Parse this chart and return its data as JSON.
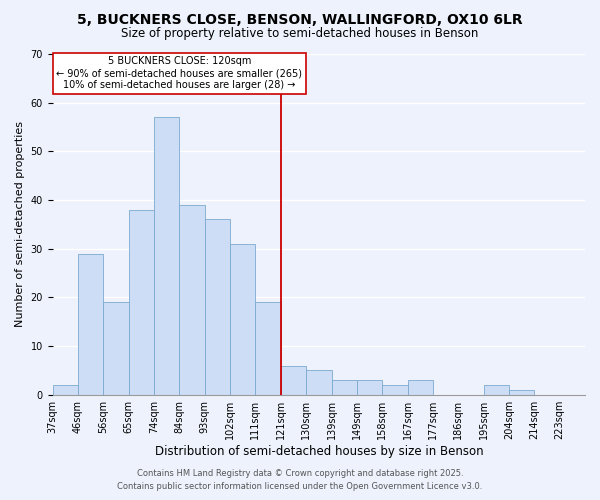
{
  "title": "5, BUCKNERS CLOSE, BENSON, WALLINGFORD, OX10 6LR",
  "subtitle": "Size of property relative to semi-detached houses in Benson",
  "xlabel": "Distribution of semi-detached houses by size in Benson",
  "ylabel": "Number of semi-detached properties",
  "categories": [
    "37sqm",
    "46sqm",
    "56sqm",
    "65sqm",
    "74sqm",
    "84sqm",
    "93sqm",
    "102sqm",
    "111sqm",
    "121sqm",
    "130sqm",
    "139sqm",
    "149sqm",
    "158sqm",
    "167sqm",
    "177sqm",
    "186sqm",
    "195sqm",
    "204sqm",
    "214sqm",
    "223sqm"
  ],
  "values": [
    2,
    29,
    19,
    38,
    57,
    39,
    36,
    31,
    19,
    6,
    5,
    3,
    3,
    2,
    3,
    0,
    0,
    2,
    1,
    0,
    0
  ],
  "bar_color": "#ccddf5",
  "bar_edge_color": "#7aaad0",
  "subject_line_color": "#cc0000",
  "subject_bar_index": 9,
  "ylim": [
    0,
    70
  ],
  "yticks": [
    0,
    10,
    20,
    30,
    40,
    50,
    60,
    70
  ],
  "annotation_title": "5 BUCKNERS CLOSE: 120sqm",
  "annotation_line1": "← 90% of semi-detached houses are smaller (265)",
  "annotation_line2": "10% of semi-detached houses are larger (28) →",
  "annotation_box_facecolor": "#ffffff",
  "annotation_box_edgecolor": "#cc0000",
  "background_color": "#eef2fc",
  "grid_color": "#ffffff",
  "footer_line1": "Contains HM Land Registry data © Crown copyright and database right 2025.",
  "footer_line2": "Contains public sector information licensed under the Open Government Licence v3.0.",
  "title_fontsize": 10,
  "subtitle_fontsize": 8.5,
  "xlabel_fontsize": 8.5,
  "ylabel_fontsize": 8,
  "tick_fontsize": 7,
  "annotation_fontsize": 7,
  "footer_fontsize": 6
}
